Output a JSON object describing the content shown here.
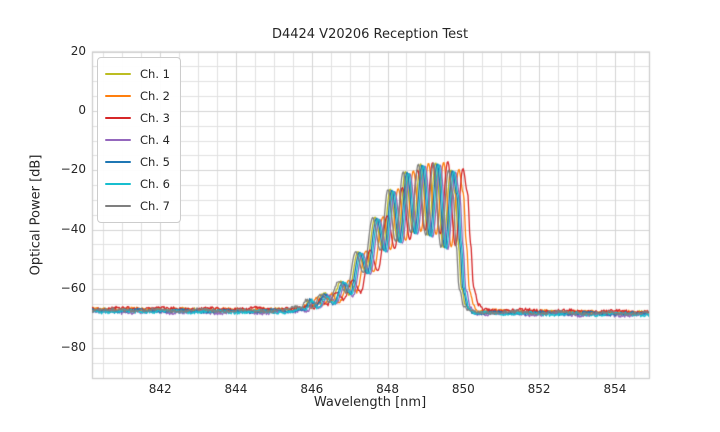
{
  "chart_data": {
    "type": "line",
    "title": "D4424 V20206 Reception Test",
    "xlabel": "Wavelength [nm]",
    "ylabel": "Optical Power [dB]",
    "xlim": [
      840.2,
      854.9
    ],
    "ylim": [
      -90,
      20
    ],
    "xticks": [
      842,
      844,
      846,
      848,
      850,
      852,
      854
    ],
    "xtick_labels": [
      "842",
      "844",
      "846",
      "848",
      "850",
      "852",
      "854"
    ],
    "yticks": [
      20,
      0,
      -20,
      -40,
      -60,
      -80
    ],
    "ytick_labels": [
      "20",
      "0",
      "−20",
      "−40",
      "−60",
      "−80"
    ],
    "grid": true,
    "minor_grid_x_step_nm": 0.5,
    "minor_grid_y_step_db": 5,
    "legend_position": "upper left",
    "noise_floor_db": -67.5,
    "noise_amplitude_db": 0.55,
    "base_spectrum": {
      "comment": "Shared spectral shape (wavelength nm vs optical power dB); each channel is this curve shifted by dx_nm and dy_db",
      "x": [
        840.2,
        845.55,
        845.75,
        845.9,
        846.05,
        846.2,
        846.45,
        846.65,
        846.9,
        847.1,
        847.35,
        847.55,
        847.8,
        848.0,
        848.2,
        848.4,
        848.6,
        848.8,
        849.0,
        849.2,
        849.4,
        849.6,
        849.8,
        849.92,
        850.0,
        850.08,
        850.2,
        850.35,
        854.9
      ],
      "y": [
        -67.2,
        -67.3,
        -66.2,
        -66.7,
        -63.6,
        -65.8,
        -61.8,
        -64.5,
        -57.5,
        -61.5,
        -47.5,
        -54.5,
        -36.0,
        -47.0,
        -26.5,
        -44.0,
        -20.5,
        -41.0,
        -18.0,
        -42.0,
        -17.6,
        -46.0,
        -20.0,
        -28.0,
        -45.0,
        -60.0,
        -66.0,
        -67.8,
        -68.2
      ]
    },
    "series": [
      {
        "name": "Ch. 1",
        "color": "#bcbd22",
        "dx_nm": -0.13,
        "dy_db": 0.1
      },
      {
        "name": "Ch. 2",
        "color": "#ff7f0e",
        "dx_nm": 0.08,
        "dy_db": 0.3
      },
      {
        "name": "Ch. 3",
        "color": "#d62728",
        "dx_nm": 0.19,
        "dy_db": 0.6
      },
      {
        "name": "Ch. 4",
        "color": "#9467bd",
        "dx_nm": -0.01,
        "dy_db": -0.6
      },
      {
        "name": "Ch. 5",
        "color": "#1f77b4",
        "dx_nm": -0.09,
        "dy_db": -0.2
      },
      {
        "name": "Ch. 6",
        "color": "#17becf",
        "dx_nm": -0.05,
        "dy_db": -0.4
      },
      {
        "name": "Ch. 7",
        "color": "#7f7f7f",
        "dx_nm": -0.19,
        "dy_db": 0.0
      }
    ]
  }
}
